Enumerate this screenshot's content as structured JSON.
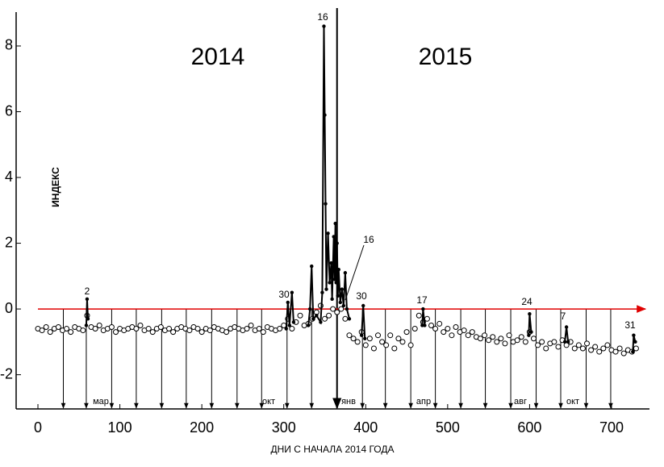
{
  "chart_data": {
    "type": "scatter",
    "xlabel": "ДНИ С НАЧАЛА 2014 ГОДА",
    "ylabel": "ИНДЕКС",
    "xlim": [
      -26.6,
      746.3
    ],
    "ylim": [
      -3.04,
      9.03
    ],
    "xticks": [
      0,
      100,
      200,
      300,
      400,
      500,
      600,
      700
    ],
    "yticks": [
      -2,
      0,
      2,
      4,
      6,
      8
    ],
    "hline": 0,
    "hline_color": "#e00000",
    "year_line": 365,
    "month_markers": [
      31,
      59,
      90,
      120,
      151,
      181,
      212,
      243,
      273,
      304,
      334,
      396,
      424,
      455,
      485,
      516,
      546,
      577,
      608,
      638,
      669,
      699
    ],
    "month_labels": [
      "мар",
      "окт",
      "янв",
      "апр",
      "авг",
      "окт"
    ],
    "annotations": [
      "2014",
      "2015",
      "2",
      "30",
      "16",
      "16",
      "30",
      "17",
      "24",
      "7",
      "31"
    ],
    "series": [
      {
        "color": "#000000",
        "x": [
          0,
          5,
          10,
          15,
          20,
          25,
          30,
          35,
          40,
          45,
          50,
          55,
          60,
          65,
          70,
          75,
          80,
          85,
          90,
          95,
          100,
          105,
          110,
          115,
          120,
          125,
          130,
          135,
          140,
          145,
          150,
          155,
          160,
          165,
          170,
          175,
          180,
          185,
          190,
          195,
          200,
          205,
          210,
          215,
          220,
          225,
          230,
          235,
          240,
          245,
          250,
          255,
          260,
          265,
          270,
          275,
          280,
          285,
          290,
          295,
          300,
          305,
          310,
          315,
          320,
          325,
          330,
          335,
          340,
          345,
          350,
          355,
          360,
          365,
          370,
          375,
          380,
          385,
          390,
          395,
          400,
          405,
          410,
          415,
          420,
          425,
          430,
          435,
          440,
          445,
          450,
          455,
          460,
          465,
          470,
          475,
          480,
          485,
          490,
          495,
          500,
          505,
          510,
          515,
          520,
          525,
          530,
          535,
          540,
          545,
          550,
          555,
          560,
          565,
          570,
          575,
          580,
          585,
          590,
          595,
          600,
          605,
          610,
          615,
          620,
          625,
          630,
          635,
          640,
          645,
          650,
          655,
          660,
          665,
          670,
          675,
          680,
          685,
          690,
          695,
          700,
          705,
          710,
          715,
          720,
          725,
          730
        ],
        "values": [
          -0.6,
          -0.65,
          -0.55,
          -0.7,
          -0.6,
          -0.55,
          -0.65,
          -0.6,
          -0.7,
          -0.55,
          -0.6,
          -0.65,
          -0.2,
          -0.55,
          -0.6,
          -0.5,
          -0.65,
          -0.6,
          -0.55,
          -0.7,
          -0.6,
          -0.65,
          -0.6,
          -0.55,
          -0.6,
          -0.5,
          -0.65,
          -0.6,
          -0.7,
          -0.6,
          -0.55,
          -0.65,
          -0.6,
          -0.7,
          -0.6,
          -0.55,
          -0.6,
          -0.65,
          -0.55,
          -0.6,
          -0.7,
          -0.6,
          -0.65,
          -0.55,
          -0.6,
          -0.65,
          -0.7,
          -0.6,
          -0.55,
          -0.6,
          -0.65,
          -0.6,
          -0.5,
          -0.65,
          -0.6,
          -0.7,
          -0.55,
          -0.6,
          -0.65,
          -0.6,
          -0.5,
          -0.3,
          -0.6,
          -0.4,
          -0.2,
          -0.5,
          -0.45,
          -0.3,
          -0.1,
          0.1,
          -0.3,
          -0.2,
          0.0,
          -0.1,
          0.0,
          -0.3,
          -0.8,
          -0.9,
          -1.0,
          -0.7,
          -1.1,
          -0.9,
          -1.2,
          -0.8,
          -1.0,
          -1.1,
          -0.8,
          -1.2,
          -0.9,
          -1.0,
          -0.7,
          -1.1,
          -0.6,
          -0.2,
          -0.4,
          -0.3,
          -0.5,
          -0.6,
          -0.45,
          -0.7,
          -0.6,
          -0.8,
          -0.55,
          -0.7,
          -0.65,
          -0.8,
          -0.7,
          -0.85,
          -0.9,
          -0.8,
          -0.95,
          -0.85,
          -1.0,
          -0.9,
          -1.05,
          -0.8,
          -1.0,
          -0.95,
          -0.85,
          -1.0,
          -0.7,
          -0.9,
          -1.1,
          -1.0,
          -1.2,
          -1.05,
          -1.0,
          -1.15,
          -0.95,
          -1.1,
          -1.0,
          -1.2,
          -1.1,
          -1.2,
          -1.05,
          -1.25,
          -1.15,
          -1.3,
          -1.2,
          -1.1,
          -1.25,
          -1.3,
          -1.2,
          -1.35,
          -1.25,
          -1.3,
          -1.2
        ]
      },
      {
        "color": "#000000",
        "x": [
          59,
          60,
          61,
          null,
          303,
          305,
          307,
          310,
          312,
          null,
          330,
          332,
          334,
          336,
          340,
          345,
          347,
          349,
          350,
          351,
          352,
          354,
          356,
          358,
          359,
          361,
          362,
          363,
          364,
          365,
          366,
          367,
          369,
          371,
          373,
          375,
          377,
          380,
          null,
          395,
          397,
          399,
          null,
          469,
          470,
          472,
          null,
          599,
          600,
          602,
          null,
          643,
          645,
          647,
          null,
          726,
          727,
          729
        ],
        "values": [
          -0.5,
          0.3,
          -0.3,
          null,
          -0.6,
          0.2,
          -0.5,
          0.5,
          -0.4,
          null,
          -0.5,
          0.0,
          1.3,
          -0.3,
          -0.2,
          -0.4,
          0.5,
          8.6,
          5.9,
          3.2,
          0.6,
          2.3,
          0.8,
          1.4,
          0.3,
          2.2,
          0.9,
          2.6,
          0.8,
          2.0,
          0.4,
          1.2,
          0.2,
          0.6,
          0.1,
          1.1,
          0.0,
          -0.3,
          null,
          -0.8,
          0.1,
          -0.9,
          null,
          -0.5,
          0.0,
          -0.5,
          null,
          -0.8,
          -0.15,
          -0.7,
          null,
          -1.0,
          -0.55,
          -1.0,
          null,
          -1.3,
          -0.8,
          -1.0
        ]
      }
    ]
  }
}
